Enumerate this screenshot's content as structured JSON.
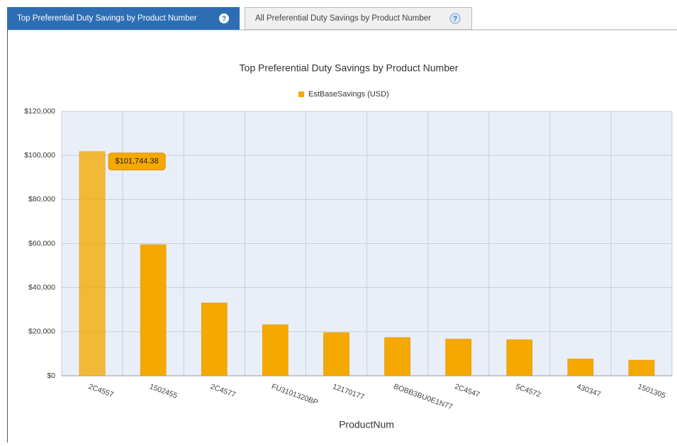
{
  "tabs": [
    "Top Preferential Duty Savings by Product Number",
    "All Preferential Duty Savings by Product Number"
  ],
  "chart_data": {
    "type": "bar",
    "title": "Top Preferential Duty Savings by Product Number",
    "x_label": "ProductNum",
    "categories": [
      "2C4557",
      "1502455",
      "2C4577",
      "FU3101320BP",
      "12170177",
      "BOBB3BU0E1N77",
      "2C4547",
      "5C4572",
      "430347",
      "1501305"
    ],
    "series": [
      {
        "name": "EstBaseSavings (USD)",
        "color": "#f5a800",
        "values": [
          101744.38,
          59500,
          33100,
          23200,
          19600,
          17400,
          16700,
          16400,
          7700,
          7100
        ],
        "value_labels": [
          "$101,744.38",
          null,
          null,
          null,
          null,
          null,
          null,
          null,
          null,
          null
        ]
      }
    ],
    "ylim": [
      0,
      120000
    ],
    "yticks": [
      {
        "value": 0,
        "label": "$0"
      },
      {
        "value": 20000,
        "label": "$20,000"
      },
      {
        "value": 40000,
        "label": "$40,000"
      },
      {
        "value": 60000,
        "label": "$60,000"
      },
      {
        "value": 80000,
        "label": "$80,000"
      },
      {
        "value": 100000,
        "label": "$100,000"
      },
      {
        "value": 120000,
        "label": "$120,000"
      }
    ],
    "grid": true,
    "legend": "top"
  }
}
